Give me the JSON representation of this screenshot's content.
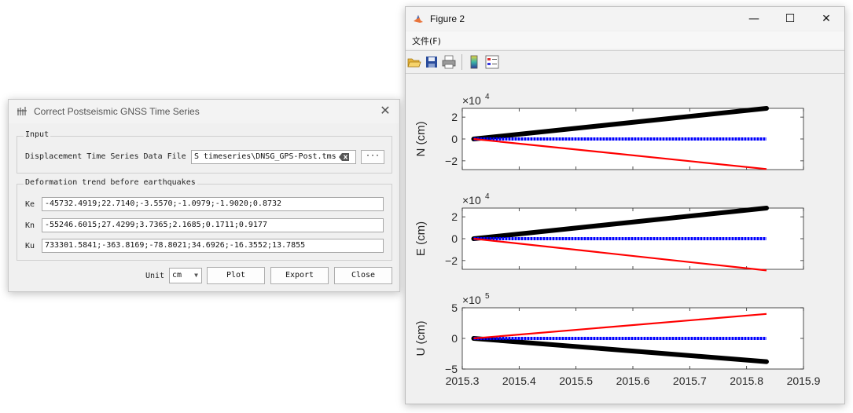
{
  "dialog": {
    "title": "Correct Postseismic GNSS Time Series",
    "input_group_label": "Input",
    "file_label": "Displacement Time Series Data File",
    "file_value": "S timeseries\\DNSG_GPS-Post.tms",
    "browse_label": "···",
    "trend_group_label": "Deformation trend before earthquakes",
    "ke_label": "Ke",
    "ke_value": "-45732.4919;22.7140;-3.5570;-1.0979;-1.9020;0.8732",
    "kn_label": "Kn",
    "kn_value": "-55246.6015;27.4299;3.7365;2.1685;0.1711;0.9177",
    "ku_label": "Ku",
    "ku_value": "733301.5841;-363.8169;-78.8021;34.6926;-16.3552;13.7855",
    "unit_label": "Unit",
    "unit_value": "cm",
    "plot_label": "Plot",
    "export_label": "Export",
    "close_label": "Close"
  },
  "figure": {
    "title": "Figure 2",
    "menu_file": "文件(F)",
    "icons": [
      "open-icon",
      "save-icon",
      "print-icon",
      "colorbar-icon",
      "legend-icon"
    ]
  },
  "chart_data": [
    {
      "type": "line",
      "ylabel": "N (cm)",
      "exponent_label": "×10",
      "exponent_power": "4",
      "xlim": [
        2015.3,
        2015.9
      ],
      "ylim": [
        -2.8,
        2.8
      ],
      "yticks": [
        -2,
        0,
        2
      ],
      "xticks_shown": false,
      "series": [
        {
          "color": "#000000",
          "style": "thick",
          "x": [
            2015.32,
            2015.835
          ],
          "y": [
            0,
            2.8
          ]
        },
        {
          "color": "#0000ff",
          "style": "dots",
          "x": [
            2015.32,
            2015.835
          ],
          "y": [
            0,
            0
          ]
        },
        {
          "color": "#ff0000",
          "style": "line",
          "x": [
            2015.32,
            2015.835
          ],
          "y": [
            0,
            -2.75
          ]
        }
      ]
    },
    {
      "type": "line",
      "ylabel": "E (cm)",
      "exponent_label": "×10",
      "exponent_power": "4",
      "xlim": [
        2015.3,
        2015.9
      ],
      "ylim": [
        -2.8,
        2.8
      ],
      "yticks": [
        -2,
        0,
        2
      ],
      "xticks_shown": false,
      "series": [
        {
          "color": "#000000",
          "style": "thick",
          "x": [
            2015.32,
            2015.835
          ],
          "y": [
            0,
            2.8
          ]
        },
        {
          "color": "#0000ff",
          "style": "dots",
          "x": [
            2015.32,
            2015.835
          ],
          "y": [
            0,
            0
          ]
        },
        {
          "color": "#ff0000",
          "style": "line",
          "x": [
            2015.32,
            2015.835
          ],
          "y": [
            0,
            -2.9
          ]
        }
      ]
    },
    {
      "type": "line",
      "ylabel": "U (cm)",
      "exponent_label": "×10",
      "exponent_power": "5",
      "xlim": [
        2015.3,
        2015.9
      ],
      "ylim": [
        -5,
        5
      ],
      "yticks": [
        -5,
        0,
        5
      ],
      "xticks": [
        2015.3,
        2015.4,
        2015.5,
        2015.6,
        2015.7,
        2015.8,
        2015.9
      ],
      "xtick_labels": [
        "2015.3",
        "2015.4",
        "2015.5",
        "2015.6",
        "2015.7",
        "2015.8",
        "2015.9"
      ],
      "xticks_shown": true,
      "series": [
        {
          "color": "#000000",
          "style": "thick",
          "x": [
            2015.32,
            2015.835
          ],
          "y": [
            0,
            -3.8
          ]
        },
        {
          "color": "#0000ff",
          "style": "dots",
          "x": [
            2015.32,
            2015.835
          ],
          "y": [
            0,
            0
          ]
        },
        {
          "color": "#ff0000",
          "style": "line",
          "x": [
            2015.32,
            2015.835
          ],
          "y": [
            0,
            4.0
          ]
        }
      ]
    }
  ]
}
